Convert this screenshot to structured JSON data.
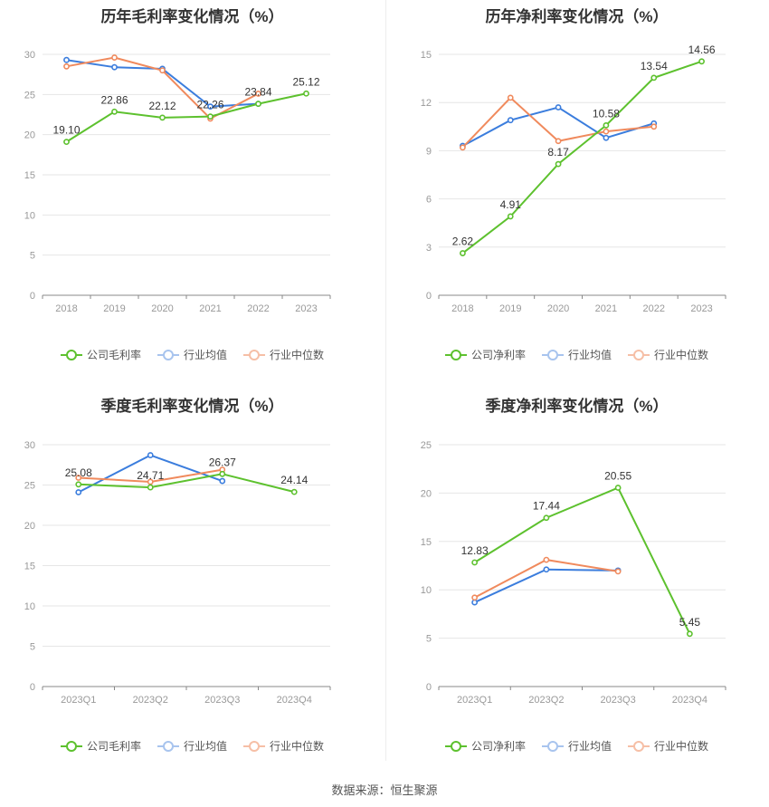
{
  "source": "数据来源：恒生聚源",
  "colors": {
    "company": "#5dc12e",
    "avg": "#3b7ddd",
    "median": "#f08a5d",
    "grid": "#e6e6e6",
    "axis": "#999999"
  },
  "chart_data": [
    {
      "type": "line",
      "title": "历年毛利率变化情况（%）",
      "categories": [
        "2018",
        "2019",
        "2020",
        "2021",
        "2022",
        "2023"
      ],
      "ylim": [
        0,
        30
      ],
      "yticks": [
        "0",
        "5",
        "10",
        "15",
        "20",
        "25",
        "30"
      ],
      "legend": [
        "公司毛利率",
        "行业均值",
        "行业中位数"
      ],
      "series": [
        {
          "name": "公司毛利率",
          "values": [
            19.1,
            22.86,
            22.12,
            22.26,
            23.84,
            25.12
          ],
          "labels": [
            "19.10",
            "22.86",
            "22.12",
            "22.26",
            "23.84",
            "25.12"
          ]
        },
        {
          "name": "行业均值",
          "values": [
            29.3,
            28.4,
            28.2,
            23.5,
            23.84,
            null
          ]
        },
        {
          "name": "行业中位数",
          "values": [
            28.5,
            29.6,
            28.0,
            22.0,
            25.1,
            null
          ]
        }
      ]
    },
    {
      "type": "line",
      "title": "历年净利率变化情况（%）",
      "categories": [
        "2018",
        "2019",
        "2020",
        "2021",
        "2022",
        "2023"
      ],
      "ylim": [
        0,
        15
      ],
      "yticks": [
        "0",
        "3",
        "6",
        "9",
        "12",
        "15"
      ],
      "legend": [
        "公司净利率",
        "行业均值",
        "行业中位数"
      ],
      "series": [
        {
          "name": "公司净利率",
          "values": [
            2.62,
            4.91,
            8.17,
            10.58,
            13.54,
            14.56
          ],
          "labels": [
            "2.62",
            "4.91",
            "8.17",
            "10.58",
            "13.54",
            "14.56"
          ]
        },
        {
          "name": "行业均值",
          "values": [
            9.3,
            10.9,
            11.7,
            9.8,
            10.7,
            null
          ]
        },
        {
          "name": "行业中位数",
          "values": [
            9.2,
            12.3,
            9.6,
            10.2,
            10.5,
            null
          ]
        }
      ]
    },
    {
      "type": "line",
      "title": "季度毛利率变化情况（%）",
      "categories": [
        "2023Q1",
        "2023Q2",
        "2023Q3",
        "2023Q4"
      ],
      "ylim": [
        0,
        30
      ],
      "yticks": [
        "0",
        "5",
        "10",
        "15",
        "20",
        "25",
        "30"
      ],
      "legend": [
        "公司毛利率",
        "行业均值",
        "行业中位数"
      ],
      "series": [
        {
          "name": "公司毛利率",
          "values": [
            25.08,
            24.71,
            26.37,
            24.14
          ],
          "labels": [
            "25.08",
            "24.71",
            "26.37",
            "24.14"
          ]
        },
        {
          "name": "行业均值",
          "values": [
            24.1,
            28.7,
            25.5,
            null
          ]
        },
        {
          "name": "行业中位数",
          "values": [
            25.9,
            25.4,
            26.9,
            null
          ]
        }
      ]
    },
    {
      "type": "line",
      "title": "季度净利率变化情况（%）",
      "categories": [
        "2023Q1",
        "2023Q2",
        "2023Q3",
        "2023Q4"
      ],
      "ylim": [
        0,
        25
      ],
      "yticks": [
        "0",
        "5",
        "10",
        "15",
        "20",
        "25"
      ],
      "legend": [
        "公司净利率",
        "行业均值",
        "行业中位数"
      ],
      "series": [
        {
          "name": "公司净利率",
          "values": [
            12.83,
            17.44,
            20.55,
            5.45
          ],
          "labels": [
            "12.83",
            "17.44",
            "20.55",
            "5.45"
          ]
        },
        {
          "name": "行业均值",
          "values": [
            8.7,
            12.1,
            12.0,
            null
          ]
        },
        {
          "name": "行业中位数",
          "values": [
            9.2,
            13.1,
            11.9,
            null
          ]
        }
      ]
    }
  ]
}
